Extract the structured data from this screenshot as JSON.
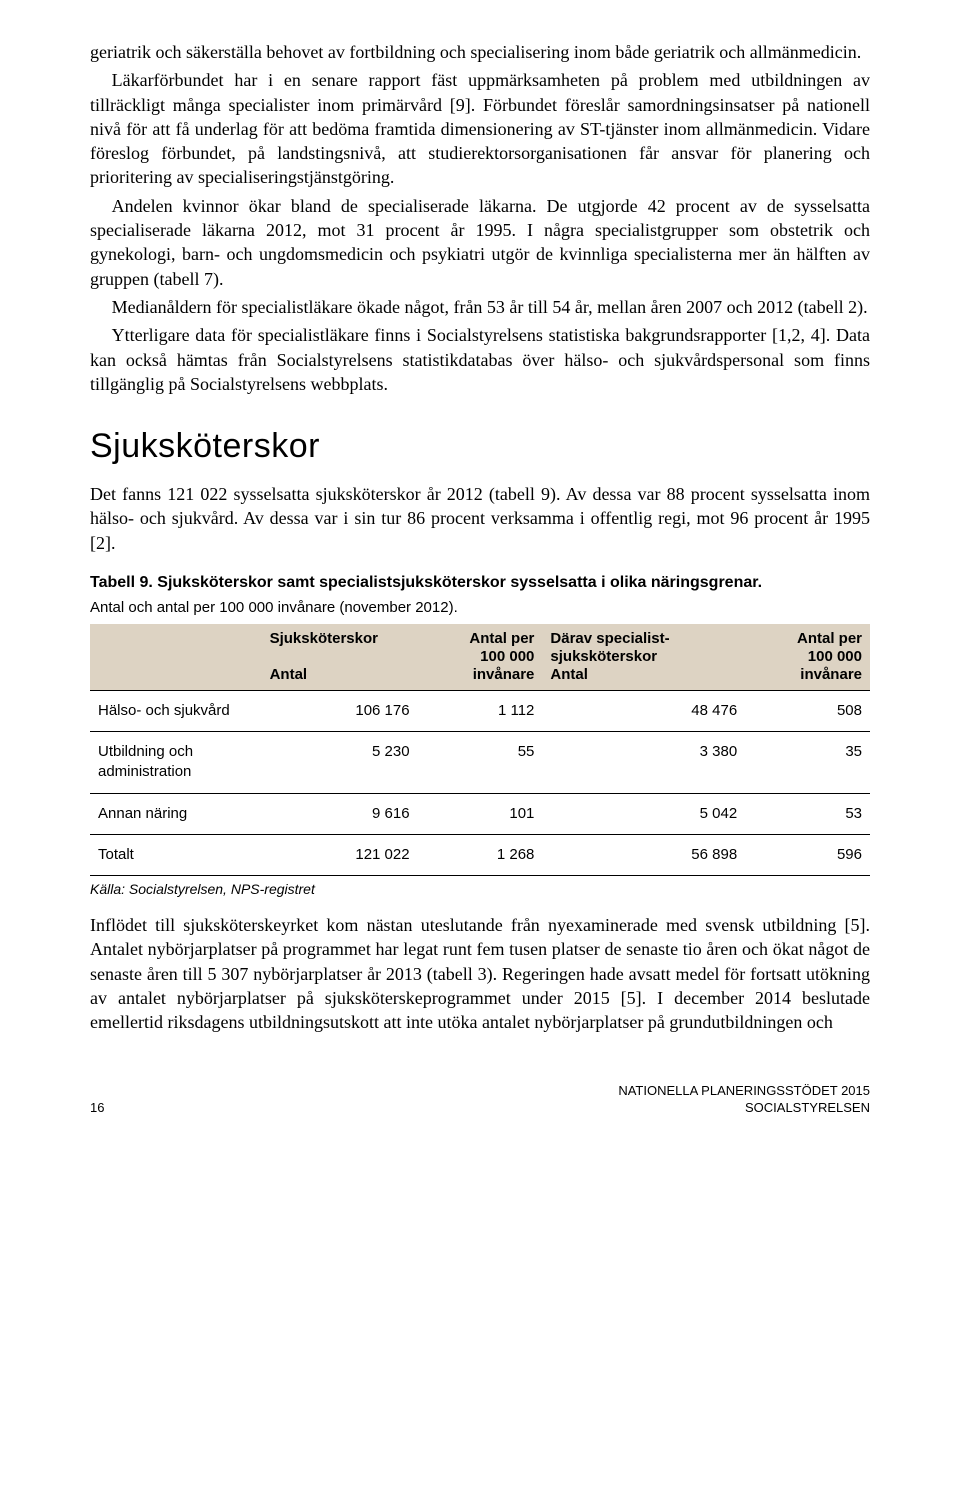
{
  "body": {
    "p1": "geriatrik och säkerställa behovet av fortbildning och specialisering inom både geriatrik och allmänmedicin.",
    "p2": "Läkarförbundet har i en senare rapport fäst uppmärksamheten på problem med utbildningen av tillräckligt många specialister inom primärvård [9]. Förbundet föreslår samordningsinsatser på nationell nivå för att få underlag för att bedöma framtida dimensionering av ST-tjänster inom allmänmedicin. Vidare föreslog förbundet, på landstingsnivå, att studierektorsorganisationen får ansvar för planering och prioritering av specialiseringstjänstgöring.",
    "p3": "Andelen kvinnor ökar bland de specialiserade läkarna. De utgjorde 42 procent av de sysselsatta specialiserade läkarna 2012, mot 31 procent år 1995. I några specialistgrupper som obstetrik och gynekologi, barn- och ungdomsmedicin och psykiatri utgör de kvinnliga specialisterna mer än hälften av gruppen (tabell 7).",
    "p4": "Medianåldern för specialistläkare ökade något, från 53 år till 54 år, mellan åren 2007 och 2012 (tabell 2).",
    "p5": "Ytterligare data för specialistläkare finns i Socialstyrelsens statistiska bakgrundsrapporter [1,2, 4]. Data kan också hämtas från Socialstyrelsens statistikdatabas över hälso- och sjukvårdspersonal som finns tillgänglig på Socialstyrelsens webbplats.",
    "h1": "Sjuksköterskor",
    "p6": "Det fanns 121 022 sysselsatta sjuksköterskor år 2012 (tabell 9). Av dessa var 88 procent sysselsatta inom hälso- och sjukvård. Av dessa var i sin tur 86 procent verksamma i offentlig regi, mot 96 procent år 1995 [2].",
    "p7": "Inflödet till sjuksköterskeyrket kom nästan uteslutande från nyexaminerade med svensk utbildning [5]. Antalet nybörjarplatser på programmet har legat runt fem tusen platser de senaste tio åren och ökat något de senaste åren till 5 307 nybörjarplatser år 2013 (tabell 3). Regeringen hade avsatt medel för fortsatt utökning av antalet nybörjarplatser på sjuksköterskeprogrammet under 2015 [5]. I december 2014 beslutade emellertid riksdagens utbildningsutskott att inte utöka antalet nybörjarplatser på grundutbildningen och"
  },
  "table": {
    "title": "Tabell 9. Sjuksköterskor samt specialistsjuksköterskor sysselsatta i olika näringsgrenar.",
    "subtitle": "Antal och antal per 100 000 invånare (november 2012).",
    "headers": {
      "c1": "",
      "c2a": "Sjuksköterskor",
      "c2b": "Antal",
      "c3a": "Antal per",
      "c3b": "100 000",
      "c3c": "invånare",
      "c4a": "Därav specialist-",
      "c4b": "sjuksköterskor",
      "c4c": "Antal",
      "c5a": "Antal per",
      "c5b": "100 000",
      "c5c": "invånare"
    },
    "rows": [
      {
        "label": "Hälso- och sjukvård",
        "v1": "106 176",
        "v2": "1 112",
        "v3": "48 476",
        "v4": "508"
      },
      {
        "label": "Utbildning och administration",
        "v1": "5 230",
        "v2": "55",
        "v3": "3 380",
        "v4": "35"
      },
      {
        "label": "Annan näring",
        "v1": "9 616",
        "v2": "101",
        "v3": "5 042",
        "v4": "53"
      },
      {
        "label": "Totalt",
        "v1": "121 022",
        "v2": "1 268",
        "v3": "56 898",
        "v4": "596"
      }
    ],
    "source": "Källa: Socialstyrelsen, NPS-registret",
    "header_bg": "#ddd3c3"
  },
  "footer": {
    "page": "16",
    "line1": "NATIONELLA PLANERINGSSTÖDET 2015",
    "line2": "SOCIALSTYRELSEN"
  }
}
